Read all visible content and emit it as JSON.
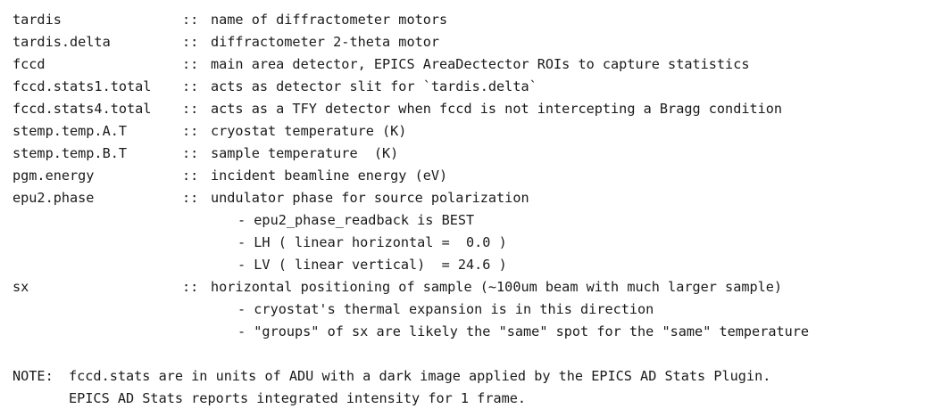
{
  "entries": [
    {
      "name": "tardis",
      "sep": "::",
      "desc": "name of diffractometer motors"
    },
    {
      "name": "tardis.delta",
      "sep": "::",
      "desc": "diffractometer 2-theta motor"
    },
    {
      "name": "fccd",
      "sep": "::",
      "desc": "main area detector, EPICS AreaDectector ROIs to capture statistics"
    },
    {
      "name": "fccd.stats1.total",
      "sep": "::",
      "desc": "acts as detector slit for `tardis.delta`"
    },
    {
      "name": "fccd.stats4.total",
      "sep": "::",
      "desc": "acts as a TFY detector when fccd is not intercepting a Bragg condition"
    },
    {
      "name": "stemp.temp.A.T",
      "sep": "::",
      "desc": "cryostat temperature (K)"
    },
    {
      "name": "stemp.temp.B.T",
      "sep": "::",
      "desc": "sample temperature  (K)"
    },
    {
      "name": "pgm.energy",
      "sep": "::",
      "desc": "incident beamline energy (eV)"
    },
    {
      "name": "epu2.phase",
      "sep": "::",
      "desc": "undulator phase for source polarization"
    },
    {
      "name": "sx",
      "sep": "::",
      "desc": "horizontal positioning of sample (~100um beam with much larger sample)"
    }
  ],
  "epu2_subitems": [
    "- epu2_phase_readback is BEST",
    "- LH ( linear horizontal =  0.0 )",
    "- LV ( linear vertical)  = 24.6 )"
  ],
  "sx_subitems": [
    "- cryostat's thermal expansion is in this direction",
    "- \"groups\" of sx are likely the \"same\" spot for the \"same\" temperature"
  ],
  "note": {
    "label": "NOTE:",
    "line1": "fccd.stats are in units of ADU with a dark image applied by the EPICS AD Stats Plugin.",
    "line2": "EPICS AD Stats reports integrated intensity for 1 frame."
  }
}
